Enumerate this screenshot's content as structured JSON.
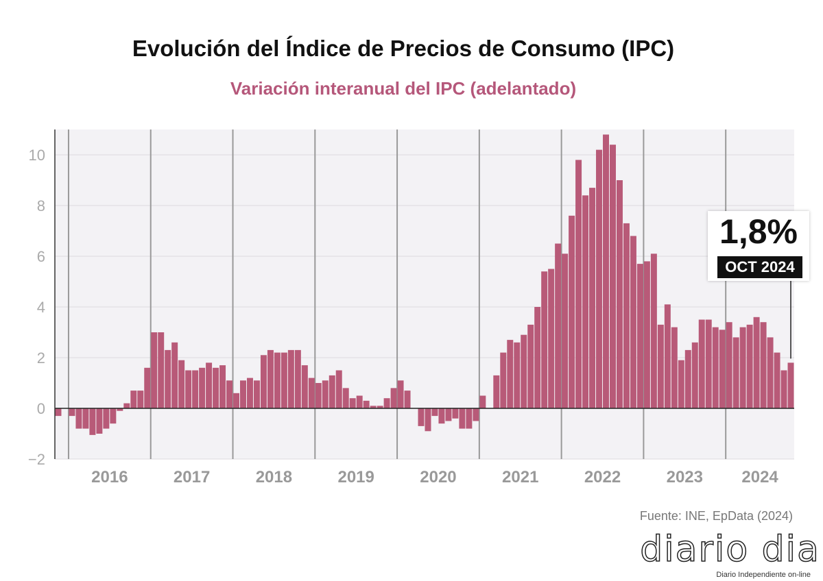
{
  "chart_data": {
    "type": "bar",
    "title": "Evolución del Índice de Precios de Consumo (IPC)",
    "subtitle": "Variación interanual del IPC (adelantado)",
    "source": "Fuente: INE, EpData (2024)",
    "ylim": [
      -2,
      11
    ],
    "yticks": [
      "−2",
      "0",
      "2",
      "4",
      "6",
      "8",
      "10"
    ],
    "ytick_values": [
      -2,
      0,
      2,
      4,
      6,
      8,
      10
    ],
    "year_labels": [
      "2016",
      "2017",
      "2018",
      "2019",
      "2020",
      "2021",
      "2022",
      "2023",
      "2024"
    ],
    "grid": true,
    "bar_color": "#b85a78",
    "start": "2015-11",
    "end": "2024-10",
    "values": [
      -0.3,
      0.0,
      -0.3,
      -0.8,
      -0.8,
      -1.05,
      -1.0,
      -0.8,
      -0.6,
      -0.1,
      0.2,
      0.7,
      0.7,
      1.6,
      3.0,
      3.0,
      2.3,
      2.6,
      1.9,
      1.5,
      1.5,
      1.6,
      1.8,
      1.6,
      1.7,
      1.1,
      0.6,
      1.1,
      1.2,
      1.1,
      2.1,
      2.3,
      2.2,
      2.2,
      2.3,
      2.3,
      1.7,
      1.2,
      1.0,
      1.1,
      1.3,
      1.5,
      0.8,
      0.4,
      0.5,
      0.3,
      0.1,
      0.1,
      0.4,
      0.8,
      1.1,
      0.7,
      0.0,
      -0.7,
      -0.9,
      -0.3,
      -0.6,
      -0.5,
      -0.4,
      -0.8,
      -0.8,
      -0.5,
      0.5,
      0.0,
      1.3,
      2.2,
      2.7,
      2.6,
      2.9,
      3.3,
      4.0,
      5.4,
      5.5,
      6.5,
      6.1,
      7.6,
      9.8,
      8.4,
      8.7,
      10.2,
      10.8,
      10.4,
      9.0,
      7.3,
      6.8,
      5.7,
      5.8,
      6.1,
      3.3,
      4.1,
      3.2,
      1.9,
      2.3,
      2.6,
      3.5,
      3.5,
      3.2,
      3.1,
      3.4,
      2.8,
      3.2,
      3.3,
      3.6,
      3.4,
      2.8,
      2.2,
      1.5,
      1.8
    ],
    "annotation": {
      "value": "1,8%",
      "date": "OCT 2024"
    }
  },
  "logo": {
    "name": "diario dia",
    "tagline": "Diario Independiente on-line"
  }
}
